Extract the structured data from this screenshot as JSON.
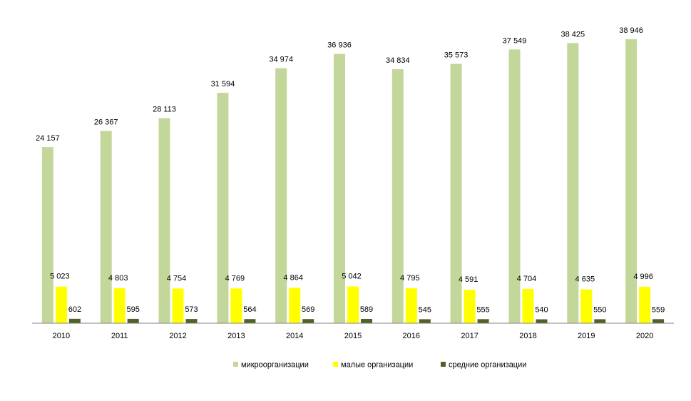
{
  "chart_data": {
    "type": "bar",
    "categories": [
      "2010",
      "2011",
      "2012",
      "2013",
      "2014",
      "2015",
      "2016",
      "2017",
      "2018",
      "2019",
      "2020"
    ],
    "series": [
      {
        "name": "микроорганизации",
        "color": "#c4d79b",
        "values": [
          24157,
          26367,
          28113,
          31594,
          34974,
          36936,
          34834,
          35573,
          37549,
          38425,
          38946
        ],
        "labels": [
          "24 157",
          "26 367",
          "28 113",
          "31 594",
          "34 974",
          "36 936",
          "34 834",
          "35 573",
          "37 549",
          "38 425",
          "38 946"
        ]
      },
      {
        "name": "малые организации",
        "color": "#ffff00",
        "values": [
          5023,
          4803,
          4754,
          4769,
          4864,
          5042,
          4795,
          4591,
          4704,
          4635,
          4996
        ],
        "labels": [
          "5 023",
          "4 803",
          "4 754",
          "4 769",
          "4 864",
          "5 042",
          "4 795",
          "4 591",
          "4 704",
          "4 635",
          "4 996"
        ]
      },
      {
        "name": "средние организации",
        "color": "#4f6228",
        "values": [
          602,
          595,
          573,
          564,
          569,
          589,
          545,
          555,
          540,
          550,
          559
        ],
        "labels": [
          "602",
          "595",
          "573",
          "564",
          "569",
          "589",
          "545",
          "555",
          "540",
          "550",
          "559"
        ]
      }
    ],
    "title": "",
    "xlabel": "",
    "ylabel": "",
    "ylim": [
      0,
      40000
    ],
    "grid": false,
    "legend_position": "bottom"
  }
}
